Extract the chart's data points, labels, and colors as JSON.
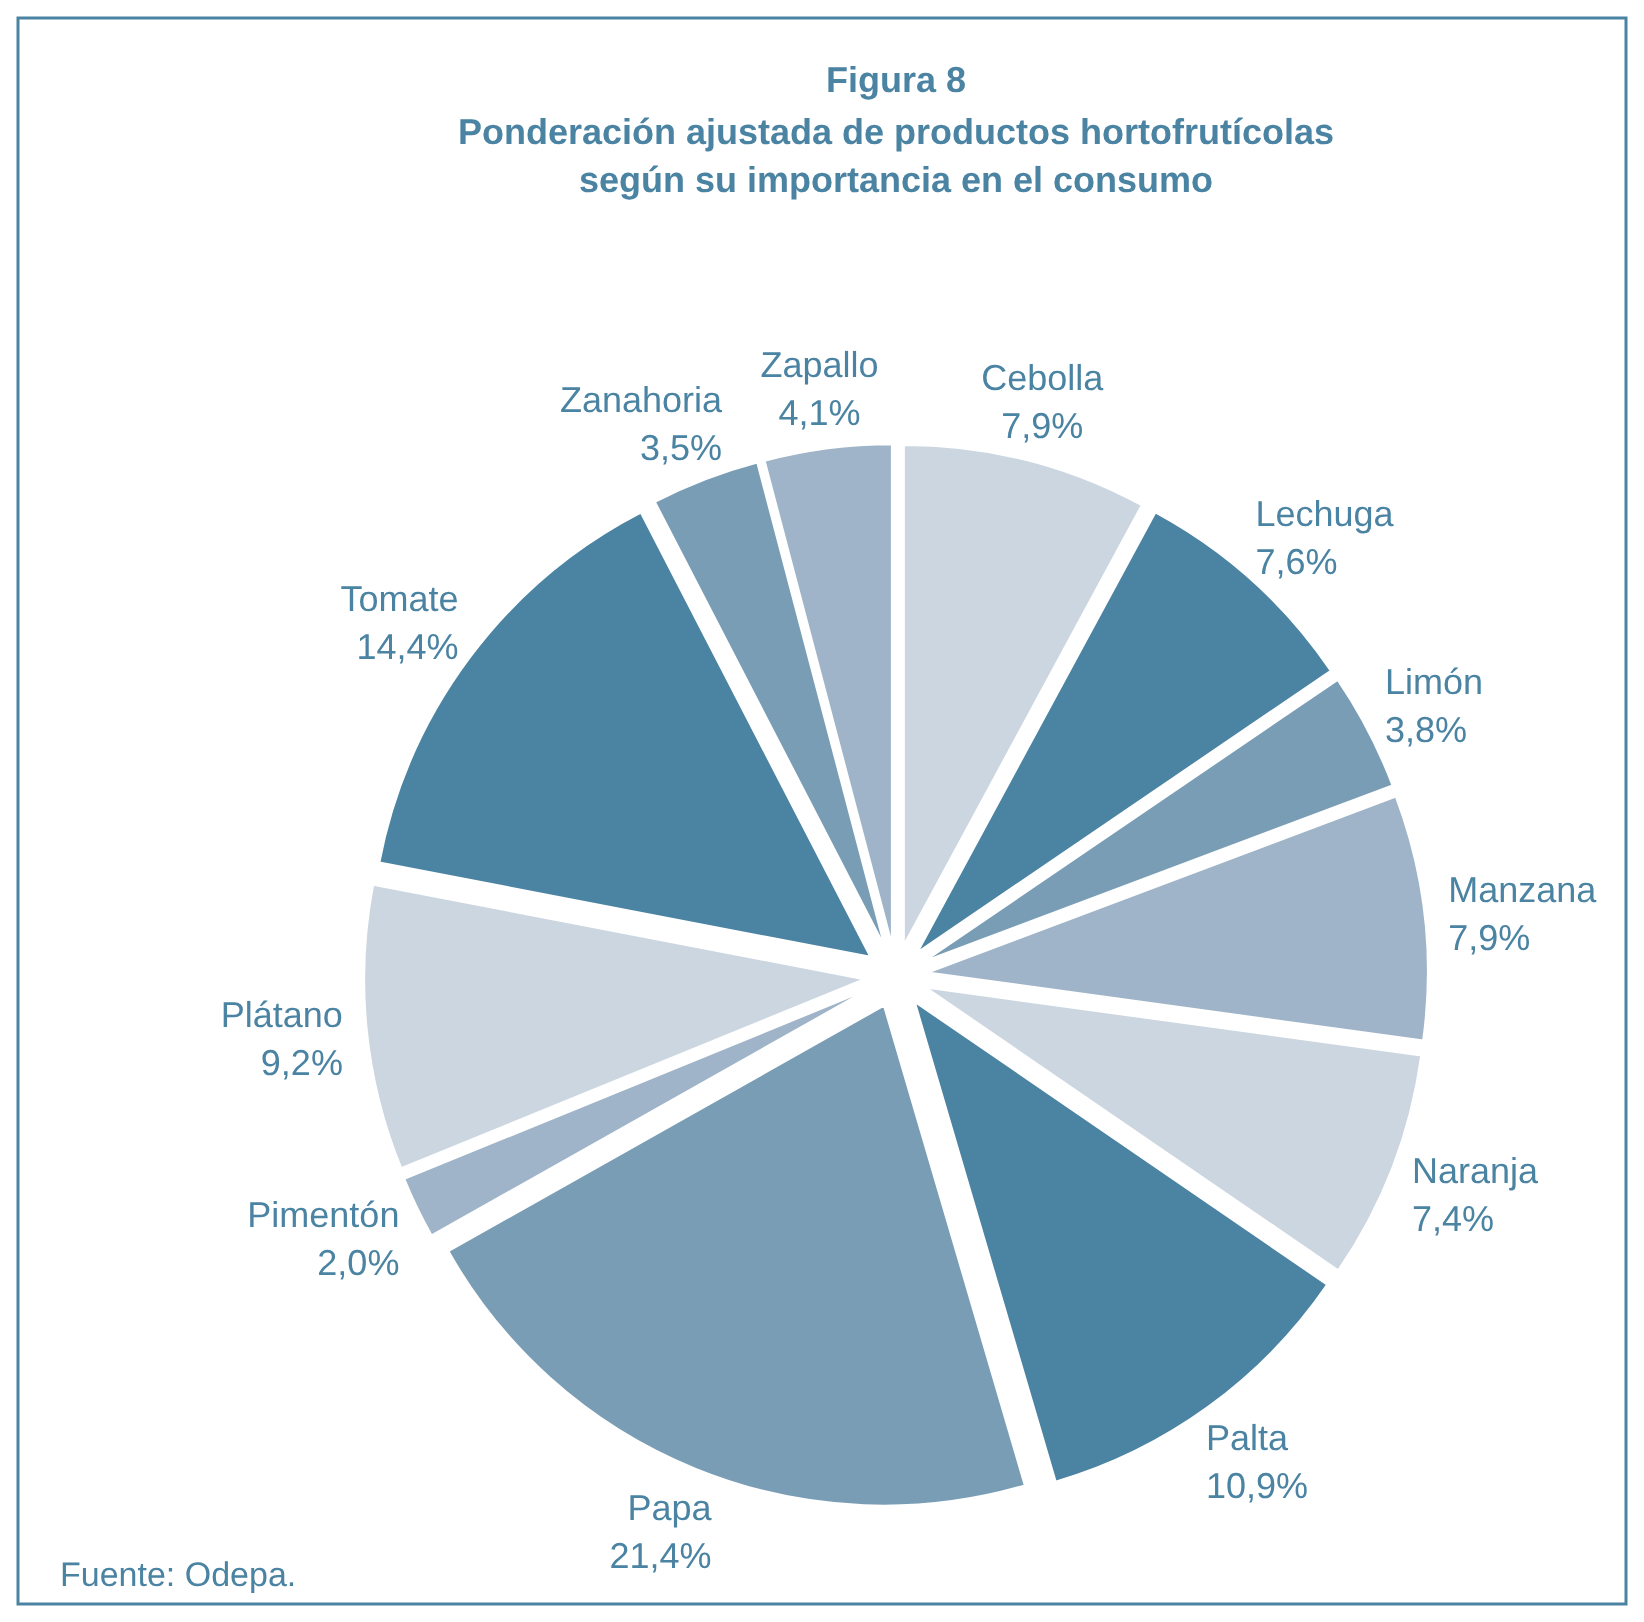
{
  "chart_data": {
    "type": "pie",
    "title": "Figura 8",
    "subtitle": "Ponderación ajustada de productos hortofrutícolas\nsegún su importancia en el consumo",
    "categories": [
      "Cebolla",
      "Lechuga",
      "Limón",
      "Manzana",
      "Naranja",
      "Palta",
      "Papa",
      "Pimentón",
      "Plátano",
      "Tomate",
      "Zanahoria",
      "Zapallo"
    ],
    "values": [
      7.9,
      7.6,
      3.8,
      7.9,
      7.4,
      10.9,
      21.4,
      2.0,
      9.2,
      14.4,
      3.5,
      4.1
    ],
    "value_labels": [
      "7,9%",
      "7,6%",
      "3,8%",
      "7,9%",
      "7,4%",
      "10,9%",
      "21,4%",
      "2,0%",
      "9,2%",
      "14,4%",
      "3,5%",
      "4,1%"
    ],
    "colors": [
      "#cbd6e0",
      "#4b83a3",
      "#7a9db6",
      "#9fb4c8",
      "#cbd6e0",
      "#4b83a3",
      "#7a9db6",
      "#9fb4c8",
      "#cbd6e0",
      "#4b83a3",
      "#7a9db6",
      "#9fb4c8"
    ],
    "annotations": [
      "Fuente: Odepa."
    ]
  }
}
